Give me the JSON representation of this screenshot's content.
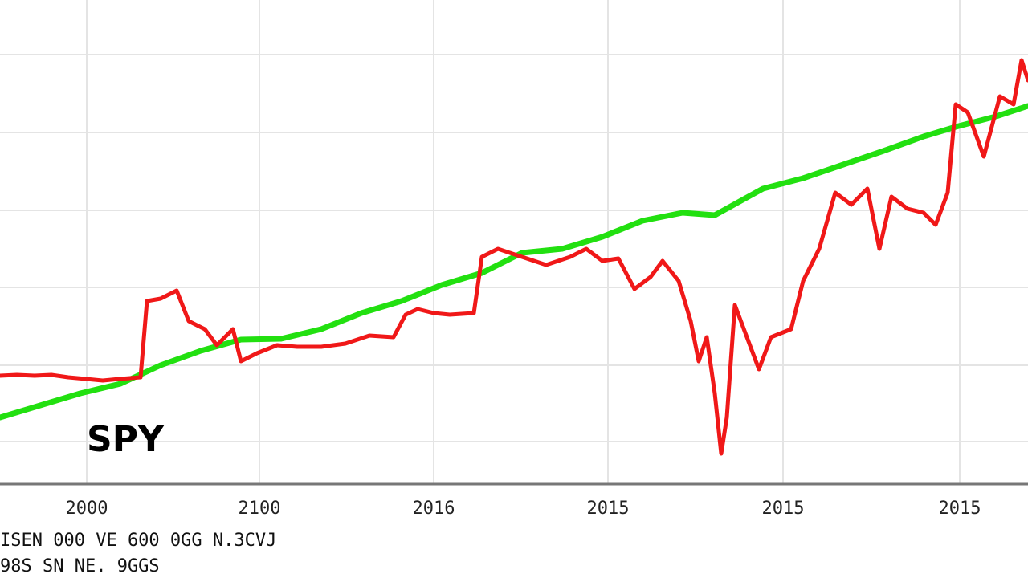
{
  "chart_data": {
    "type": "line",
    "annotations": [
      "SPY"
    ],
    "footnotes": [
      "ISEN 000 VE 600 0GG N.3CVJ",
      "98S SN NE. 9GGS"
    ],
    "xlim": [
      0,
      1280
    ],
    "ylim": [
      0,
      603
    ],
    "xticks": [
      {
        "value": 108,
        "label": "2000"
      },
      {
        "value": 323,
        "label": "2100"
      },
      {
        "value": 540,
        "label": "2016"
      },
      {
        "value": 757,
        "label": "2015"
      },
      {
        "value": 975,
        "label": "2015"
      },
      {
        "value": 1195,
        "label": "2015"
      }
    ],
    "grid": true,
    "series": [
      {
        "color": "#22e010",
        "x": [
          0,
          50,
          100,
          150,
          200,
          250,
          300,
          350,
          400,
          450,
          500,
          550,
          600,
          650,
          700,
          750,
          800,
          850,
          890,
          950,
          1000,
          1050,
          1100,
          1150,
          1190,
          1240,
          1280
        ],
        "values": [
          83,
          98,
          113,
          125,
          148,
          166,
          180,
          181,
          193,
          213,
          228,
          248,
          263,
          288,
          293,
          308,
          328,
          338,
          335,
          368,
          381,
          398,
          415,
          433,
          445,
          458,
          471
        ]
      },
      {
        "color": "#f01818",
        "x": [
          0,
          21,
          43,
          64,
          85,
          107,
          128,
          149,
          175,
          183,
          200,
          220,
          235,
          255,
          270,
          290,
          300,
          320,
          345,
          370,
          400,
          430,
          460,
          490,
          505,
          520,
          540,
          560,
          590,
          600,
          620,
          650,
          680,
          710,
          730,
          750,
          770,
          790,
          810,
          825,
          845,
          860,
          870,
          880,
          890,
          898,
          905,
          915,
          930,
          945,
          960,
          985,
          1000,
          1020,
          1040,
          1060,
          1080,
          1095,
          1110,
          1130,
          1150,
          1165,
          1180,
          1190,
          1205,
          1225,
          1245,
          1262,
          1272,
          1280
        ],
        "values": [
          135,
          136,
          135,
          136,
          133,
          131,
          129,
          131,
          133,
          228,
          231,
          241,
          203,
          193,
          173,
          193,
          153,
          163,
          173,
          171,
          171,
          175,
          185,
          183,
          211,
          218,
          213,
          211,
          213,
          283,
          293,
          283,
          273,
          283,
          293,
          278,
          281,
          243,
          258,
          278,
          253,
          203,
          153,
          183,
          113,
          38,
          83,
          223,
          183,
          143,
          183,
          193,
          253,
          293,
          363,
          348,
          368,
          293,
          358,
          343,
          338,
          323,
          363,
          473,
          463,
          408,
          483,
          473,
          528,
          503
        ]
      }
    ]
  }
}
